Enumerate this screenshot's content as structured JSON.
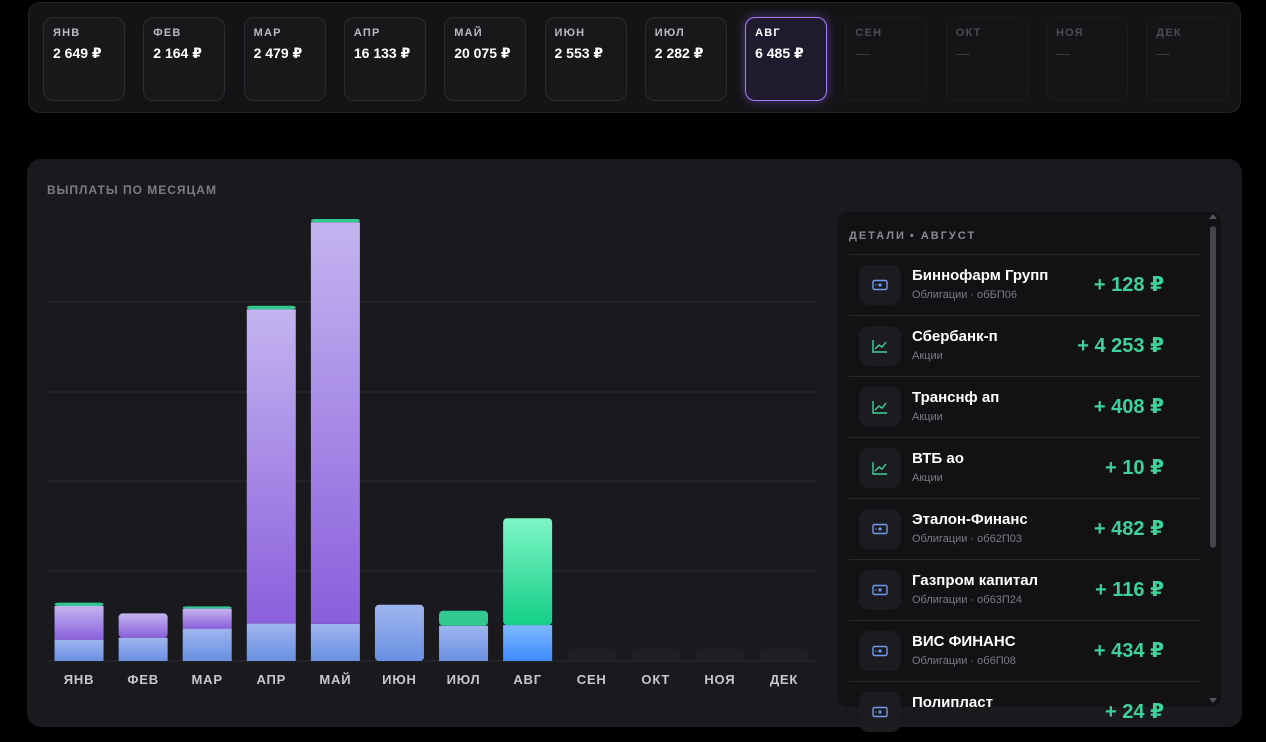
{
  "months": [
    {
      "label": "ЯНВ",
      "value": "2 649 ₽"
    },
    {
      "label": "ФЕВ",
      "value": "2 164 ₽"
    },
    {
      "label": "МАР",
      "value": "2 479 ₽"
    },
    {
      "label": "АПР",
      "value": "16 133 ₽"
    },
    {
      "label": "МАЙ",
      "value": "20 075 ₽"
    },
    {
      "label": "ИЮН",
      "value": "2 553 ₽"
    },
    {
      "label": "ИЮЛ",
      "value": "2 282 ₽"
    },
    {
      "label": "АВГ",
      "value": "6 485 ₽"
    },
    {
      "label": "СЕН",
      "value": "—"
    },
    {
      "label": "ОКТ",
      "value": "—"
    },
    {
      "label": "НОЯ",
      "value": "—"
    },
    {
      "label": "ДЕК",
      "value": "—"
    }
  ],
  "active_month": "АВГ",
  "chart_title": "ВЫПЛАТЫ ПО МЕСЯЦАМ",
  "chart_data": {
    "type": "bar",
    "stacked": true,
    "categories": [
      "ЯНВ",
      "ФЕВ",
      "МАР",
      "АПР",
      "МАЙ",
      "ИЮН",
      "ИЮЛ",
      "АВГ",
      "СЕН",
      "ОКТ",
      "НОЯ",
      "ДЕК"
    ],
    "series": [
      {
        "values": [
          970,
          1060,
          1470,
          1700,
          1690,
          2553,
          1600,
          1630,
          0,
          0,
          0,
          0
        ],
        "color": "#6f9bf0"
      },
      {
        "values": [
          1530,
          1104,
          909,
          14273,
          18235,
          0,
          0,
          0,
          0,
          0,
          0,
          0
        ],
        "color": "#9b72e8"
      },
      {
        "values": [
          149,
          0,
          100,
          160,
          150,
          0,
          682,
          4855,
          0,
          0,
          0,
          0
        ],
        "color": "#2fcf8e"
      }
    ],
    "ylim": [
      0,
      20075
    ],
    "grid": true,
    "highlight": "АВГ"
  },
  "details": {
    "title": "ДЕТАЛИ",
    "month": "• АВГУСТ",
    "items": [
      {
        "name": "Биннофарм Групп",
        "sub": "Облигации · обБП06",
        "amount": "+ 128 ₽",
        "icon": "bond-icon"
      },
      {
        "name": "Сбербанк-п",
        "sub": "Акции",
        "amount": "+ 4 253 ₽",
        "icon": "chart-icon"
      },
      {
        "name": "Транснф ап",
        "sub": "Акции",
        "amount": "+ 408 ₽",
        "icon": "chart-icon"
      },
      {
        "name": "ВТБ ао",
        "sub": "Акции",
        "amount": "+ 10 ₽",
        "icon": "chart-icon"
      },
      {
        "name": "Эталон-Финанс",
        "sub": "Облигации · об62П03",
        "amount": "+ 482 ₽",
        "icon": "bond-icon"
      },
      {
        "name": "Газпром капитал",
        "sub": "Облигации · об63П24",
        "amount": "+ 116 ₽",
        "icon": "bond-icon"
      },
      {
        "name": "ВИС ФИНАНС",
        "sub": "Облигации · об6П08",
        "amount": "+ 434 ₽",
        "icon": "bond-icon"
      },
      {
        "name": "Полипласт",
        "sub": "",
        "amount": "+ 24 ₽",
        "icon": "bond-icon"
      }
    ]
  },
  "colors": {
    "accent": "#a77bff",
    "positive": "#3fd19a",
    "blue": "#6f9bf0",
    "purple": "#9b72e8",
    "green": "#2fcf8e"
  }
}
